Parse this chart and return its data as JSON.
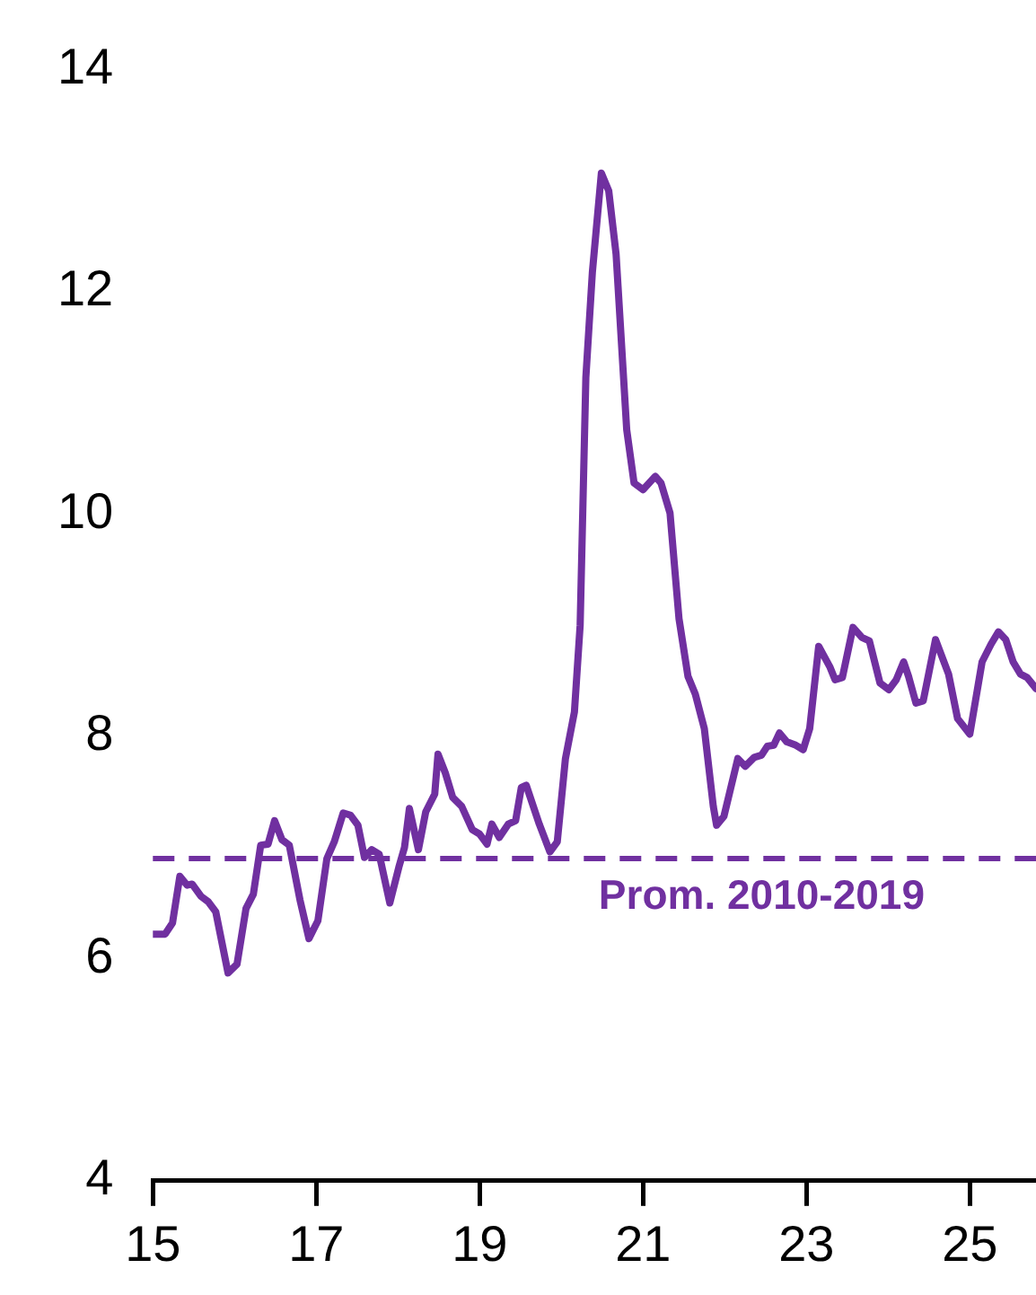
{
  "chart_data": {
    "type": "line",
    "x": [
      15.0,
      15.15,
      15.24,
      15.33,
      15.42,
      15.48,
      15.59,
      15.68,
      15.77,
      15.92,
      16.03,
      16.14,
      16.23,
      16.32,
      16.41,
      16.49,
      16.58,
      16.67,
      16.8,
      16.91,
      17.02,
      17.13,
      17.22,
      17.33,
      17.42,
      17.51,
      17.59,
      17.68,
      17.77,
      17.9,
      18.01,
      18.08,
      18.14,
      18.25,
      18.34,
      18.45,
      18.49,
      18.58,
      18.67,
      18.78,
      18.91,
      19.0,
      19.09,
      19.15,
      19.24,
      19.35,
      19.44,
      19.51,
      19.57,
      19.73,
      19.86,
      19.95,
      20.05,
      20.16,
      20.23,
      20.3,
      20.38,
      20.49,
      20.58,
      20.67,
      20.8,
      20.89,
      21.0,
      21.15,
      21.22,
      21.33,
      21.44,
      21.55,
      21.64,
      21.75,
      21.86,
      21.9,
      21.99,
      22.16,
      22.25,
      22.36,
      22.45,
      22.52,
      22.6,
      22.67,
      22.76,
      22.87,
      22.96,
      23.04,
      23.15,
      23.29,
      23.35,
      23.44,
      23.57,
      23.68,
      23.77,
      23.9,
      24.01,
      24.1,
      24.19,
      24.25,
      24.34,
      24.43,
      24.58,
      24.74,
      24.85,
      25.0,
      25.15,
      25.26,
      25.35,
      25.44,
      25.53,
      25.62,
      25.7,
      25.81
    ],
    "series": [
      {
        "color": "#7030a0",
        "values": [
          6.22,
          6.22,
          6.32,
          6.74,
          6.66,
          6.67,
          6.56,
          6.51,
          6.42,
          5.87,
          5.95,
          6.45,
          6.58,
          7.02,
          7.03,
          7.24,
          7.07,
          7.02,
          6.53,
          6.18,
          6.34,
          6.9,
          7.05,
          7.31,
          7.29,
          7.2,
          6.91,
          6.98,
          6.94,
          6.5,
          6.82,
          7.0,
          7.35,
          6.98,
          7.32,
          7.48,
          7.84,
          7.67,
          7.45,
          7.37,
          7.16,
          7.12,
          7.03,
          7.21,
          7.09,
          7.21,
          7.24,
          7.54,
          7.56,
          7.21,
          6.96,
          7.05,
          7.8,
          8.22,
          9.0,
          11.23,
          12.18,
          13.07,
          12.91,
          12.34,
          10.76,
          10.28,
          10.22,
          10.34,
          10.28,
          10.01,
          9.06,
          8.54,
          8.38,
          8.07,
          7.37,
          7.2,
          7.28,
          7.8,
          7.73,
          7.81,
          7.83,
          7.91,
          7.92,
          8.03,
          7.95,
          7.92,
          7.88,
          8.07,
          8.81,
          8.62,
          8.51,
          8.53,
          8.98,
          8.89,
          8.86,
          8.48,
          8.42,
          8.51,
          8.67,
          8.54,
          8.3,
          8.32,
          8.87,
          8.56,
          8.16,
          8.02,
          8.67,
          8.83,
          8.94,
          8.87,
          8.67,
          8.56,
          8.53,
          8.43
        ]
      }
    ],
    "xlim": [
      15,
      25.81
    ],
    "xticks": [
      15,
      17,
      19,
      21,
      23,
      25
    ],
    "ylim": [
      4,
      14
    ],
    "yticks": [
      4,
      6,
      8,
      10,
      12,
      14
    ],
    "ref_lines": [
      {
        "axis": "y",
        "value": 6.9,
        "label": "Prom. 2010-2019",
        "color": "#7030a0",
        "line_style": "dashed"
      }
    ],
    "grid": false,
    "legend": false,
    "marker": "none",
    "line_style": "solid"
  }
}
